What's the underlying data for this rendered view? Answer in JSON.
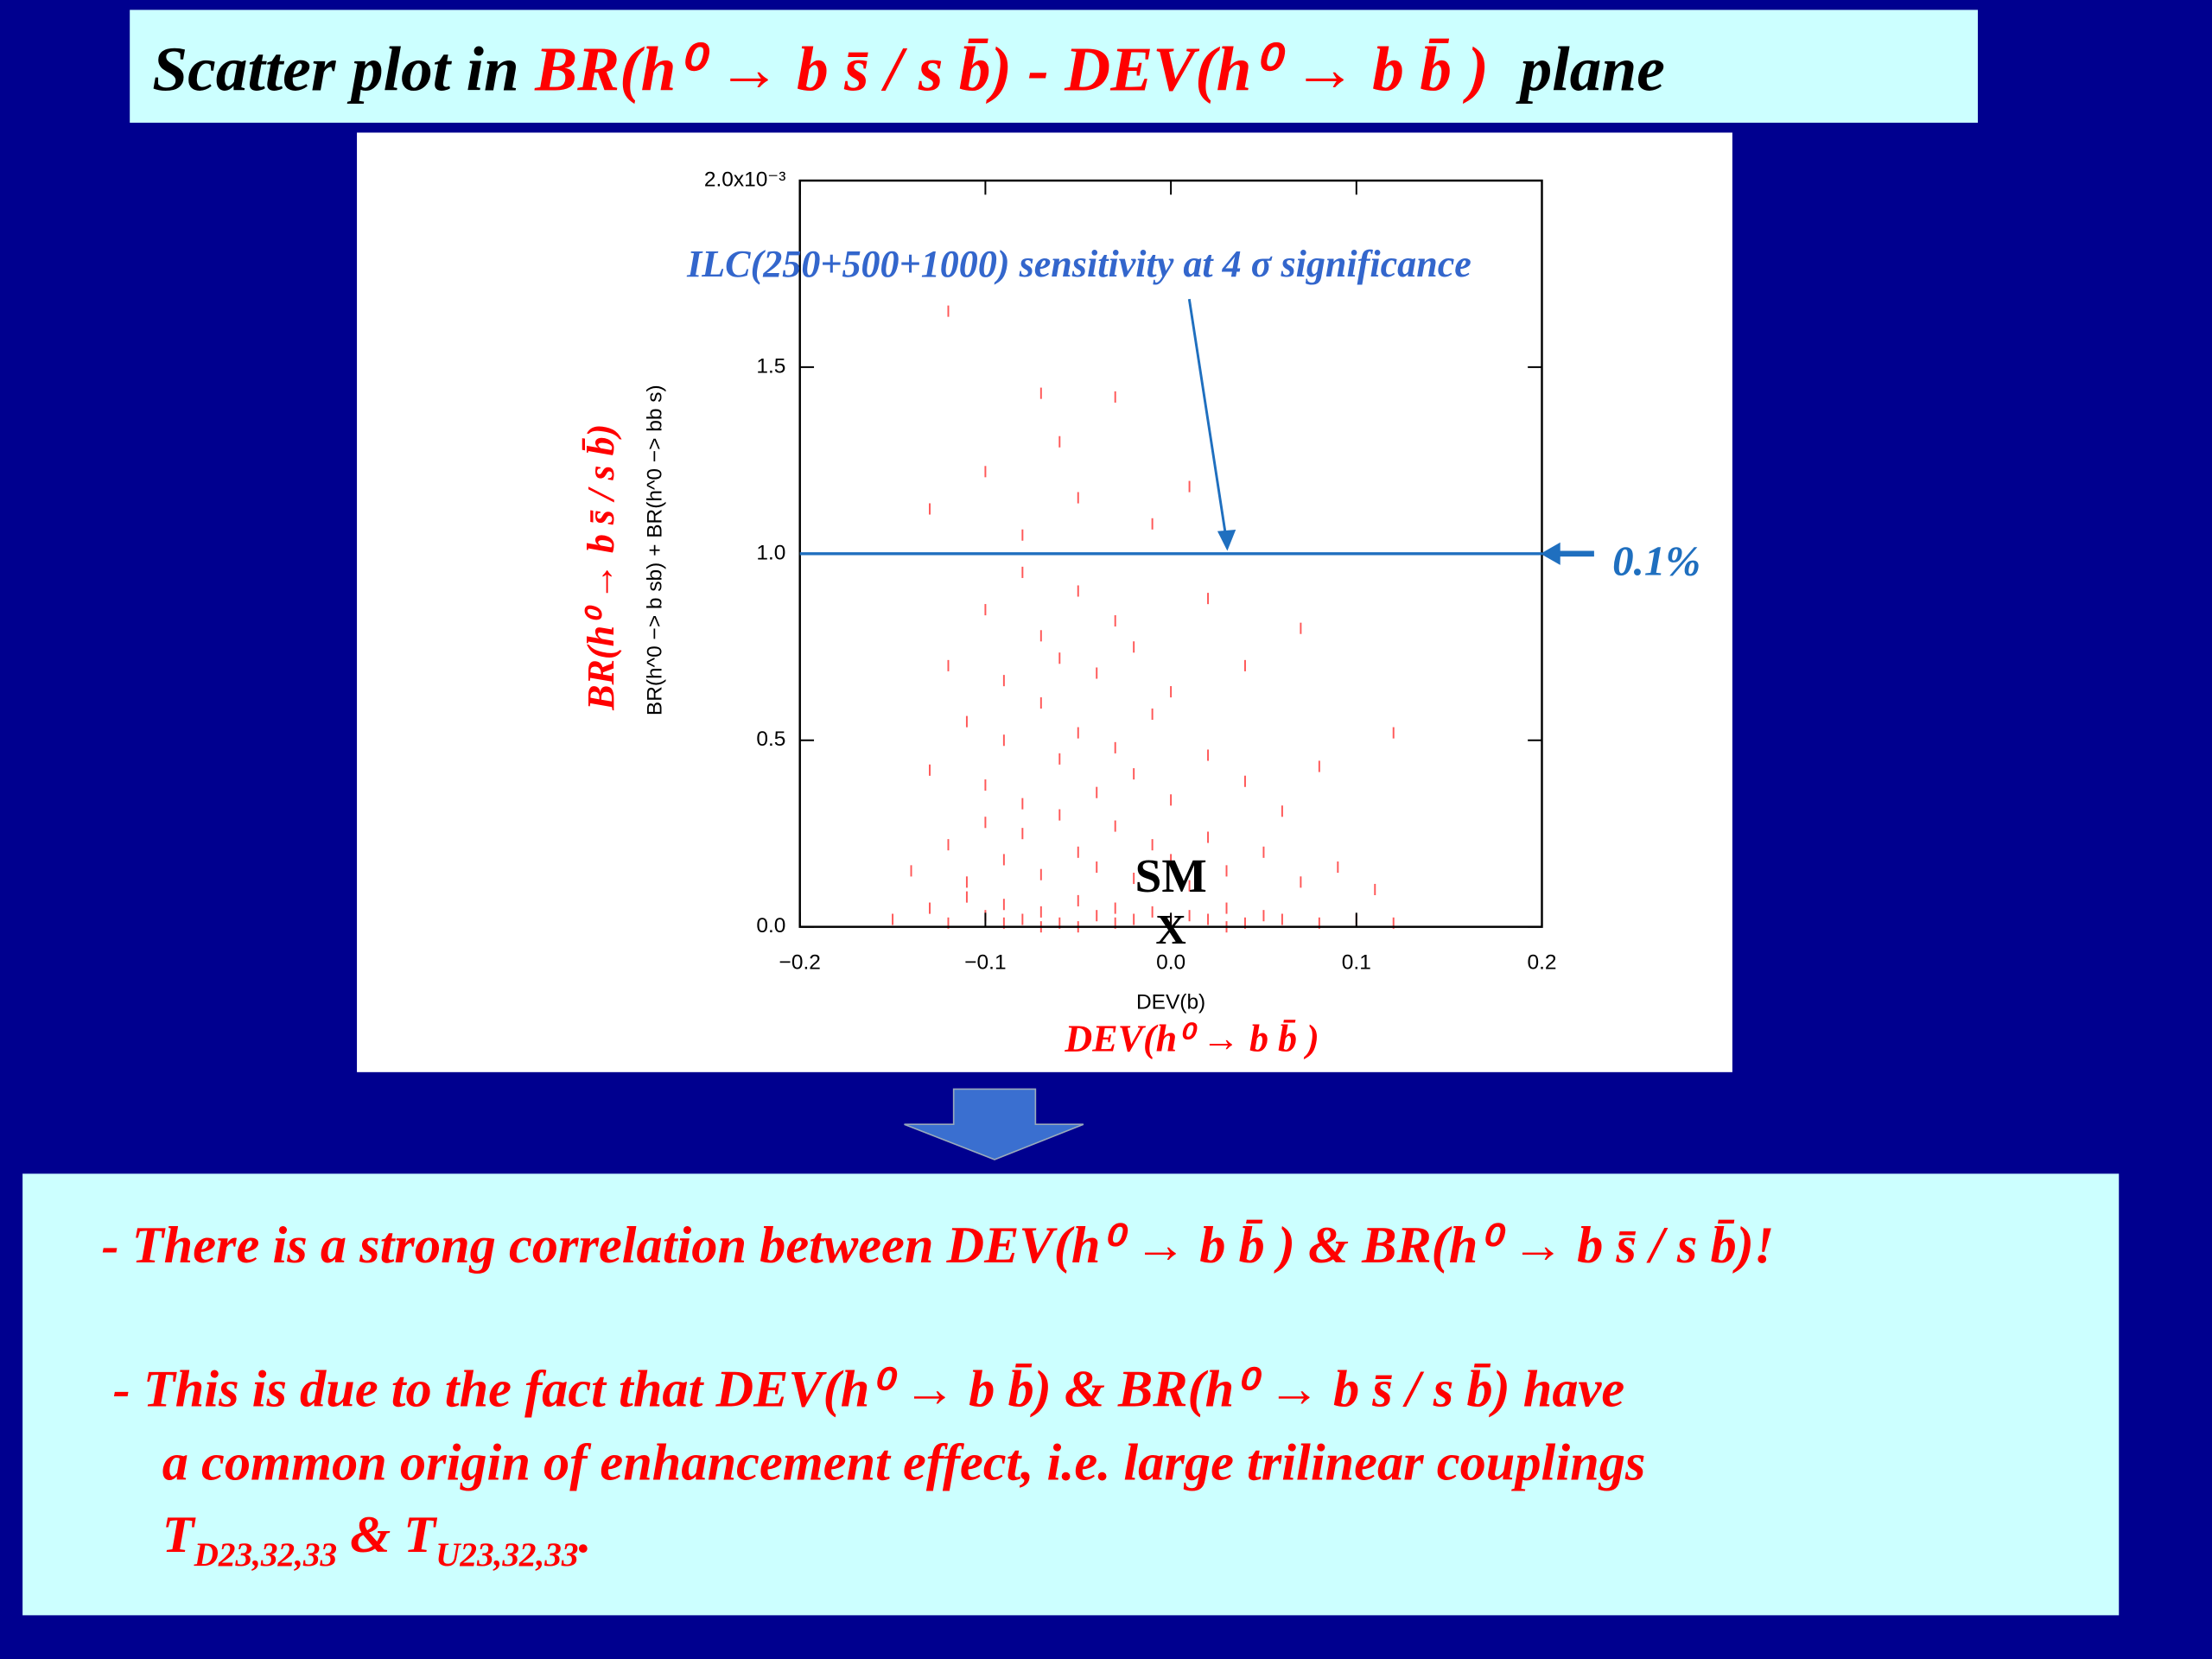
{
  "slide": {
    "title": [
      "Scatter plot in ",
      "BR(h⁰ → b s̄ / s b̄) - DEV(h⁰ → b b̄ )",
      "  plane"
    ],
    "bullets": [
      "- There is a strong correlation between DEV(h⁰ → b b̄ ) & BR(h⁰ → b s̄ / s b̄)!",
      "- This is due to the fact that DEV(h⁰ → b b̄) & BR(h⁰ → b s̄ / s b̄) have",
      "a common origin of enhancement effect, i.e. large trilinear couplings"
    ],
    "last_line": [
      "T",
      "D23,32,33",
      " & T",
      "U23,32,33",
      "."
    ]
  },
  "chart_data": {
    "type": "scatter",
    "x_label": "DEV(b)",
    "y_label": "BR(h^0 −> b sb) + BR(h^0 −> bb s)",
    "x_label_note": "DEV(h⁰ → b b̄ )",
    "y_label_note": "BR(h⁰ → b s̄ / s b̄)",
    "color": "#ff2020",
    "xlim": [
      -0.2,
      0.2
    ],
    "ylim": [
      0,
      2.0
    ],
    "xticks": [
      {
        "value": -0.2,
        "label": "−0.2"
      },
      {
        "value": -0.1,
        "label": "−0.1"
      },
      {
        "value": 0,
        "label": "0.0"
      },
      0.1,
      0.2
    ],
    "yticks": [
      {
        "value": 0,
        "label": "0.0"
      },
      0.5,
      {
        "value": 1,
        "label": "1.0"
      },
      1.5,
      {
        "value": 2,
        "label": "2.0x10⁻³"
      }
    ],
    "reference_line": {
      "value": 1.0,
      "label": "0.1%",
      "color": "#1f6fbf",
      "annotation": "ILC(250+500+1000) sensitivity at 4 σ significance"
    },
    "sm_point": {
      "x": 0,
      "y": 0,
      "label": "SM",
      "marker": "X"
    },
    "x": [
      -0.15,
      -0.13,
      -0.12,
      -0.11,
      -0.1,
      -0.09,
      -0.08,
      -0.07,
      -0.06,
      -0.05,
      -0.04,
      -0.03,
      -0.02,
      -0.01,
      0.0,
      0.01,
      0.02,
      0.03,
      0.04,
      0.05,
      0.06,
      0.08,
      0.1,
      0.12,
      -0.14,
      -0.12,
      -0.11,
      -0.1,
      -0.09,
      -0.08,
      -0.07,
      -0.06,
      -0.05,
      -0.04,
      -0.03,
      -0.02,
      -0.01,
      0.0,
      0.01,
      0.02,
      0.03,
      0.05,
      0.07,
      0.09,
      0.11,
      -0.13,
      -0.11,
      -0.1,
      -0.09,
      -0.08,
      -0.07,
      -0.06,
      -0.05,
      -0.04,
      -0.03,
      -0.02,
      -0.01,
      0.0,
      0.02,
      0.04,
      0.06,
      0.08,
      0.12,
      -0.12,
      -0.1,
      -0.09,
      -0.08,
      -0.07,
      -0.06,
      -0.05,
      -0.04,
      -0.03,
      -0.02,
      0.0,
      0.02,
      0.04,
      0.07,
      -0.13,
      -0.1,
      -0.08,
      -0.06,
      -0.05,
      -0.03,
      -0.01,
      0.01,
      -0.12,
      -0.07,
      -0.05,
      -0.03,
      0.0,
      -0.07,
      0.03,
      -0.09
    ],
    "values": [
      0.02,
      0.05,
      0.01,
      0.08,
      0.03,
      0.06,
      0.02,
      0.04,
      0.01,
      0.07,
      0.03,
      0.05,
      0.02,
      0.04,
      0.01,
      0.03,
      0.02,
      0.05,
      0.01,
      0.03,
      0.02,
      0.01,
      0.02,
      0.01,
      0.15,
      0.22,
      0.12,
      0.28,
      0.18,
      0.25,
      0.14,
      0.3,
      0.2,
      0.16,
      0.27,
      0.13,
      0.22,
      0.18,
      0.11,
      0.24,
      0.15,
      0.2,
      0.12,
      0.16,
      0.1,
      0.42,
      0.55,
      0.38,
      0.5,
      0.33,
      0.6,
      0.45,
      0.52,
      0.36,
      0.48,
      0.41,
      0.57,
      0.34,
      0.46,
      0.39,
      0.31,
      0.43,
      0.52,
      0.7,
      0.85,
      0.66,
      0.95,
      0.78,
      0.72,
      0.9,
      0.68,
      0.82,
      0.75,
      0.63,
      0.88,
      0.7,
      0.8,
      1.12,
      1.22,
      1.05,
      1.3,
      1.15,
      1.42,
      1.08,
      1.18,
      1.65,
      1.43,
      0.0,
      0.01,
      0.02,
      0.0,
      0.0,
      0.01
    ]
  }
}
